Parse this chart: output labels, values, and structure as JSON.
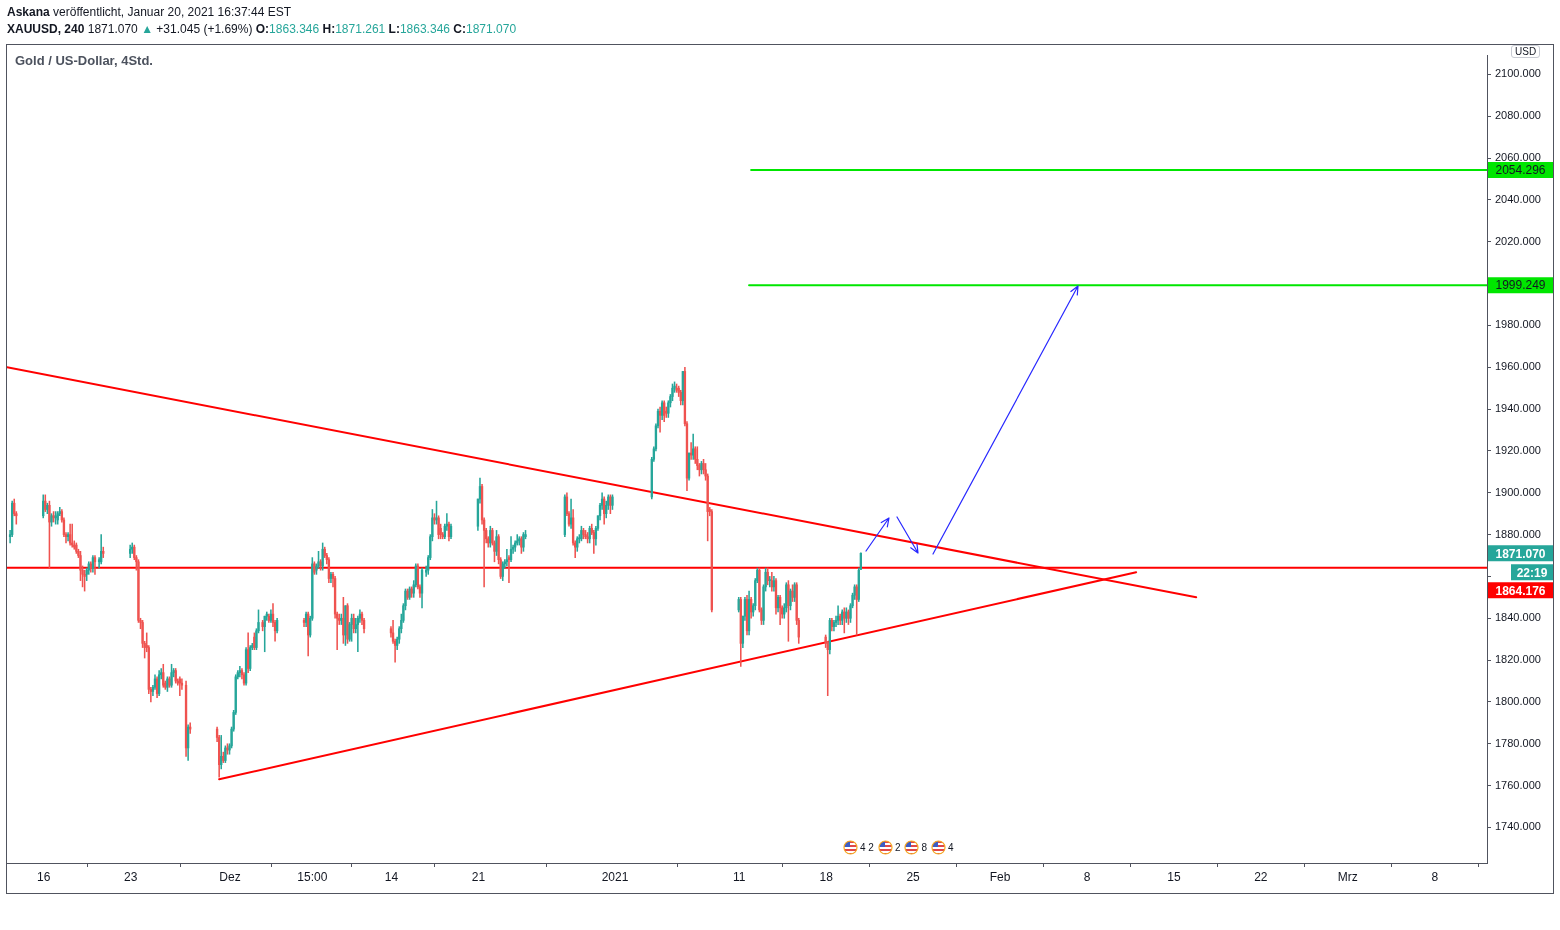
{
  "chart_data": {
    "type": "candlestick",
    "title": "Gold / US-Dollar, 4Std.",
    "subtitle": "Askana veröffentlicht, Januar 20, 2021 16:37:44 EST",
    "ylabel": "USD",
    "x": [
      "2020-11-13T07:00",
      "2020-11-13T11:00",
      "2020-11-13T15:00",
      "2020-11-13T19:00",
      "2020-11-15T23:00",
      "2020-11-16T03:00",
      "2020-11-16T07:00",
      "2020-11-16T11:00",
      "2020-11-16T15:00",
      "2020-11-16T19:00",
      "2020-11-16T23:00",
      "2020-11-17T03:00",
      "2020-11-17T07:00",
      "2020-11-17T11:00",
      "2020-11-17T15:00",
      "2020-11-17T19:00",
      "2020-11-17T23:00",
      "2020-11-18T03:00",
      "2020-11-18T07:00",
      "2020-11-18T11:00",
      "2020-11-18T15:00",
      "2020-11-18T19:00",
      "2020-11-18T23:00",
      "2020-11-19T03:00",
      "2020-11-19T07:00",
      "2020-11-19T11:00",
      "2020-11-19T15:00",
      "2020-11-19T19:00",
      "2020-11-19T23:00",
      "2020-11-20T03:00",
      "2020-11-20T11:00",
      "2020-11-20T15:00",
      "2020-11-20T19:00",
      "2020-11-22T23:00",
      "2020-11-23T03:00",
      "2020-11-23T07:00",
      "2020-11-23T11:00",
      "2020-11-23T15:00",
      "2020-11-23T19:00",
      "2020-11-23T23:00",
      "2020-11-24T03:00",
      "2020-11-24T07:00",
      "2020-11-24T11:00",
      "2020-11-24T15:00",
      "2020-11-24T19:00",
      "2020-11-24T23:00",
      "2020-11-25T03:00",
      "2020-11-25T07:00",
      "2020-11-25T11:00",
      "2020-11-25T15:00",
      "2020-11-25T19:00",
      "2020-11-25T23:00",
      "2020-11-26T03:00",
      "2020-11-26T07:00",
      "2020-11-26T11:00",
      "2020-11-26T15:00",
      "2020-11-26T19:00",
      "2020-11-26T23:00",
      "2020-11-27T03:00",
      "2020-11-27T11:00",
      "2020-11-27T15:00",
      "2020-11-27T19:00",
      "2020-11-29T23:00",
      "2020-11-30T03:00",
      "2020-11-30T07:00",
      "2020-11-30T11:00",
      "2020-11-30T15:00",
      "2020-11-30T19:00",
      "2020-11-30T23:00",
      "2020-12-01T03:00",
      "2020-12-01T07:00",
      "2020-12-01T11:00",
      "2020-12-01T15:00",
      "2020-12-01T19:00",
      "2020-12-01T23:00",
      "2020-12-02T03:00",
      "2020-12-02T07:00",
      "2020-12-02T11:00",
      "2020-12-02T15:00",
      "2020-12-02T19:00",
      "2020-12-02T23:00",
      "2020-12-03T03:00",
      "2020-12-03T07:00",
      "2020-12-03T15:00",
      "2020-12-03T19:00",
      "2020-12-03T23:00",
      "2020-12-04T03:00",
      "2020-12-04T07:00",
      "2020-12-04T11:00",
      "2020-12-04T15:00",
      "2020-12-04T19:00",
      "2020-12-06T23:00",
      "2020-12-07T03:00",
      "2020-12-07T07:00",
      "2020-12-07T11:00",
      "2020-12-07T15:00",
      "2020-12-07T19:00",
      "2020-12-07T23:00",
      "2020-12-08T03:00",
      "2020-12-08T07:00",
      "2020-12-08T11:00",
      "2020-12-08T15:00",
      "2020-12-08T19:00",
      "2020-12-08T23:00",
      "2020-12-09T03:00",
      "2020-12-09T07:00",
      "2020-12-09T11:00",
      "2020-12-09T15:00",
      "2020-12-09T19:00",
      "2020-12-09T23:00",
      "2020-12-10T03:00",
      "2020-12-10T07:00",
      "2020-12-10T11:00",
      "2020-12-10T15:00",
      "2020-12-10T19:00",
      "2020-12-10T23:00",
      "2020-12-11T03:00",
      "2020-12-11T07:00",
      "2020-12-11T11:00",
      "2020-12-11T15:00",
      "2020-12-11T19:00",
      "2020-12-13T23:00",
      "2020-12-14T03:00",
      "2020-12-14T07:00",
      "2020-12-14T11:00",
      "2020-12-14T15:00",
      "2020-12-14T19:00",
      "2020-12-14T23:00",
      "2020-12-15T03:00",
      "2020-12-15T07:00",
      "2020-12-15T11:00",
      "2020-12-15T15:00",
      "2020-12-15T19:00",
      "2020-12-15T23:00",
      "2020-12-16T03:00",
      "2020-12-16T07:00",
      "2020-12-16T11:00",
      "2020-12-16T19:00",
      "2020-12-16T23:00",
      "2020-12-17T03:00",
      "2020-12-17T07:00",
      "2020-12-17T11:00",
      "2020-12-17T15:00",
      "2020-12-17T19:00",
      "2020-12-17T23:00",
      "2020-12-18T03:00",
      "2020-12-18T07:00",
      "2020-12-18T11:00",
      "2020-12-18T15:00",
      "2020-12-18T19:00",
      "2020-12-20T23:00",
      "2020-12-21T03:00",
      "2020-12-21T07:00",
      "2020-12-21T11:00",
      "2020-12-21T15:00",
      "2020-12-21T19:00",
      "2020-12-21T23:00",
      "2020-12-22T03:00",
      "2020-12-22T07:00",
      "2020-12-22T11:00",
      "2020-12-22T15:00",
      "2020-12-22T19:00",
      "2020-12-22T23:00",
      "2020-12-23T03:00",
      "2020-12-23T07:00",
      "2020-12-23T11:00",
      "2020-12-23T15:00",
      "2020-12-23T19:00",
      "2020-12-23T23:00",
      "2020-12-24T03:00",
      "2020-12-24T07:00",
      "2020-12-24T11:00",
      "2020-12-24T15:00",
      "2020-12-24T19:00",
      "2020-12-27T23:00",
      "2020-12-28T03:00",
      "2020-12-28T07:00",
      "2020-12-28T11:00",
      "2020-12-28T15:00",
      "2020-12-28T19:00",
      "2020-12-28T23:00",
      "2020-12-29T03:00",
      "2020-12-29T07:00",
      "2020-12-29T11:00",
      "2020-12-29T15:00",
      "2020-12-29T19:00",
      "2020-12-29T23:00",
      "2020-12-30T03:00",
      "2020-12-30T07:00",
      "2020-12-30T11:00",
      "2020-12-30T15:00",
      "2020-12-30T19:00",
      "2020-12-30T23:00",
      "2020-12-31T03:00",
      "2020-12-31T07:00",
      "2020-12-31T11:00",
      "2020-12-31T15:00",
      "2020-12-31T19:00",
      "2021-01-03T23:00",
      "2021-01-04T03:00",
      "2021-01-04T07:00",
      "2021-01-04T11:00",
      "2021-01-04T15:00",
      "2021-01-04T19:00",
      "2021-01-04T23:00",
      "2021-01-05T03:00",
      "2021-01-05T07:00",
      "2021-01-05T11:00",
      "2021-01-05T15:00",
      "2021-01-05T19:00",
      "2021-01-05T23:00",
      "2021-01-06T03:00",
      "2021-01-06T07:00",
      "2021-01-06T11:00",
      "2021-01-06T15:00",
      "2021-01-06T19:00",
      "2021-01-06T23:00",
      "2021-01-07T03:00",
      "2021-01-07T07:00",
      "2021-01-07T11:00",
      "2021-01-07T15:00",
      "2021-01-07T19:00",
      "2021-01-07T23:00",
      "2021-01-08T03:00",
      "2021-01-08T07:00",
      "2021-01-08T11:00",
      "2021-01-08T15:00",
      "2021-01-08T19:00",
      "2021-01-10T23:00",
      "2021-01-11T03:00",
      "2021-01-11T07:00",
      "2021-01-11T11:00",
      "2021-01-11T15:00",
      "2021-01-11T19:00",
      "2021-01-11T23:00",
      "2021-01-12T03:00",
      "2021-01-12T07:00",
      "2021-01-12T11:00",
      "2021-01-12T15:00",
      "2021-01-12T19:00",
      "2021-01-12T23:00",
      "2021-01-13T03:00",
      "2021-01-13T07:00",
      "2021-01-13T11:00",
      "2021-01-13T15:00",
      "2021-01-13T19:00",
      "2021-01-13T23:00",
      "2021-01-14T03:00",
      "2021-01-14T07:00",
      "2021-01-14T11:00",
      "2021-01-14T15:00",
      "2021-01-14T19:00",
      "2021-01-14T23:00",
      "2021-01-15T03:00",
      "2021-01-15T07:00",
      "2021-01-15T11:00",
      "2021-01-15T15:00",
      "2021-01-15T19:00",
      "2021-01-17T23:00",
      "2021-01-18T03:00",
      "2021-01-18T07:00",
      "2021-01-18T11:00",
      "2021-01-18T15:00",
      "2021-01-18T19:00",
      "2021-01-18T23:00",
      "2021-01-19T03:00",
      "2021-01-19T07:00",
      "2021-01-19T11:00",
      "2021-01-19T15:00",
      "2021-01-19T19:00",
      "2021-01-19T23:00",
      "2021-01-20T03:00",
      "2021-01-20T07:00",
      "2021-01-20T11:00",
      "2021-01-20T15:00",
      "2021-01-20T19:00"
    ],
    "ohlc": [
      [
        1879,
        1882,
        1876,
        1880
      ],
      [
        1880,
        1896,
        1879,
        1895
      ],
      [
        1895,
        1897,
        1889,
        1890
      ],
      [
        1890,
        1891,
        1885,
        1889
      ],
      [
        1889,
        1899,
        1888,
        1896
      ],
      [
        1896,
        1899,
        1891,
        1892
      ],
      [
        1892,
        1895,
        1890,
        1894
      ],
      [
        1894,
        1896,
        1864,
        1886
      ],
      [
        1886,
        1890,
        1884,
        1889
      ],
      [
        1889,
        1891,
        1886,
        1888
      ],
      [
        1888,
        1891,
        1885,
        1889
      ],
      [
        1887,
        1891,
        1885,
        1890
      ],
      [
        1890,
        1893,
        1889,
        1891
      ],
      [
        1891,
        1892,
        1886,
        1887
      ],
      [
        1887,
        1888,
        1879,
        1880
      ],
      [
        1880,
        1881,
        1876,
        1879
      ],
      [
        1879,
        1881,
        1877,
        1880
      ],
      [
        1880,
        1885,
        1875,
        1876
      ],
      [
        1876,
        1885,
        1874,
        1875
      ],
      [
        1875,
        1877,
        1873,
        1874
      ],
      [
        1875,
        1876,
        1871,
        1872
      ],
      [
        1872,
        1873,
        1869,
        1870
      ],
      [
        1870,
        1872,
        1858,
        1863
      ],
      [
        1863,
        1865,
        1855,
        1861
      ],
      [
        1861,
        1863,
        1853,
        1860
      ],
      [
        1861,
        1864,
        1858,
        1863
      ],
      [
        1863,
        1867,
        1861,
        1866
      ],
      [
        1866,
        1867,
        1862,
        1864
      ],
      [
        1864,
        1870,
        1862,
        1869
      ],
      [
        1869,
        1870,
        1861,
        1867
      ],
      [
        1867,
        1869,
        1864,
        1868
      ],
      [
        1867,
        1880,
        1866,
        1872
      ],
      [
        1872,
        1874,
        1869,
        1871
      ],
      [
        1871,
        1875,
        1869,
        1873
      ],
      [
        1873,
        1876,
        1871,
        1874
      ],
      [
        1874,
        1875,
        1868,
        1869
      ],
      [
        1869,
        1870,
        1863,
        1867
      ],
      [
        1867,
        1868,
        1838,
        1839
      ],
      [
        1839,
        1840,
        1835,
        1838
      ],
      [
        1838,
        1839,
        1826,
        1828
      ],
      [
        1828,
        1829,
        1821,
        1826
      ],
      [
        1827,
        1833,
        1824,
        1826
      ],
      [
        1826,
        1827,
        1804,
        1806
      ],
      [
        1806,
        1807,
        1800,
        1805
      ],
      [
        1805,
        1808,
        1803,
        1807
      ],
      [
        1807,
        1813,
        1806,
        1811
      ],
      [
        1811,
        1812,
        1802,
        1804
      ],
      [
        1804,
        1815,
        1803,
        1813
      ],
      [
        1813,
        1816,
        1811,
        1814
      ],
      [
        1814,
        1818,
        1807,
        1808
      ],
      [
        1809,
        1810,
        1806,
        1807
      ],
      [
        1807,
        1812,
        1805,
        1811
      ],
      [
        1811,
        1812,
        1807,
        1808
      ],
      [
        1808,
        1818,
        1807,
        1814
      ],
      [
        1814,
        1816,
        1812,
        1815
      ],
      [
        1815,
        1816,
        1809,
        1810
      ],
      [
        1810,
        1811,
        1808,
        1809
      ],
      [
        1811,
        1812,
        1803,
        1809
      ],
      [
        1809,
        1811,
        1806,
        1808
      ],
      [
        1808,
        1810,
        1774,
        1778
      ],
      [
        1778,
        1789,
        1772,
        1788
      ],
      [
        1788,
        1790,
        1785,
        1787
      ],
      [
        1787,
        1788,
        1781,
        1783
      ],
      [
        1783,
        1784,
        1764,
        1770
      ],
      [
        1770,
        1784,
        1768,
        1774
      ],
      [
        1774,
        1776,
        1771,
        1772
      ],
      [
        1772,
        1779,
        1771,
        1778
      ],
      [
        1778,
        1780,
        1775,
        1777
      ],
      [
        1777,
        1780,
        1775,
        1779
      ],
      [
        1779,
        1788,
        1778,
        1787
      ],
      [
        1787,
        1796,
        1786,
        1795
      ],
      [
        1795,
        1813,
        1794,
        1812
      ],
      [
        1812,
        1815,
        1811,
        1814
      ],
      [
        1814,
        1817,
        1812,
        1815
      ],
      [
        1815,
        1816,
        1811,
        1813
      ],
      [
        1813,
        1814,
        1808,
        1809
      ],
      [
        1809,
        1826,
        1808,
        1825
      ],
      [
        1825,
        1833,
        1814,
        1816
      ],
      [
        1816,
        1827,
        1815,
        1826
      ],
      [
        1826,
        1828,
        1825,
        1827
      ],
      [
        1831,
        1833,
        1825,
        1826
      ],
      [
        1826,
        1835,
        1825,
        1834
      ],
      [
        1834,
        1844,
        1833,
        1838
      ],
      [
        1838,
        1839,
        1834,
        1836
      ],
      [
        1836,
        1841,
        1824,
        1841
      ],
      [
        1841,
        1843,
        1839,
        1842
      ],
      [
        1841,
        1842,
        1838,
        1839
      ],
      [
        1839,
        1844,
        1838,
        1842
      ],
      [
        1842,
        1847,
        1836,
        1838
      ],
      [
        1838,
        1839,
        1829,
        1834
      ],
      [
        1834,
        1840,
        1833,
        1839
      ],
      [
        1839,
        1840,
        1836,
        1838
      ],
      [
        1838,
        1843,
        1836,
        1842
      ],
      [
        1842,
        1843,
        1822,
        1832
      ],
      [
        1832,
        1841,
        1831,
        1840
      ],
      [
        1840,
        1869,
        1839,
        1866
      ],
      [
        1866,
        1867,
        1861,
        1862
      ],
      [
        1863,
        1866,
        1861,
        1865
      ],
      [
        1865,
        1872,
        1864,
        1867
      ],
      [
        1867,
        1868,
        1863,
        1865
      ],
      [
        1865,
        1876,
        1863,
        1873
      ],
      [
        1873,
        1874,
        1869,
        1870
      ],
      [
        1870,
        1871,
        1866,
        1868
      ],
      [
        1868,
        1869,
        1857,
        1859
      ],
      [
        1859,
        1862,
        1857,
        1861
      ],
      [
        1861,
        1862,
        1855,
        1859
      ],
      [
        1859,
        1860,
        1840,
        1842
      ],
      [
        1842,
        1843,
        1825,
        1840
      ],
      [
        1840,
        1842,
        1837,
        1839
      ],
      [
        1839,
        1842,
        1837,
        1840
      ],
      [
        1840,
        1850,
        1828,
        1832
      ],
      [
        1832,
        1846,
        1827,
        1846
      ],
      [
        1846,
        1847,
        1828,
        1830
      ],
      [
        1830,
        1838,
        1829,
        1837
      ],
      [
        1837,
        1842,
        1829,
        1840
      ],
      [
        1840,
        1842,
        1833,
        1835
      ],
      [
        1835,
        1840,
        1833,
        1837
      ],
      [
        1837,
        1841,
        1824,
        1840
      ],
      [
        1840,
        1844,
        1838,
        1842
      ],
      [
        1842,
        1843,
        1837,
        1839
      ],
      [
        1839,
        1840,
        1833,
        1835
      ],
      [
        1835,
        1836,
        1831,
        1833
      ],
      [
        1833,
        1839,
        1828,
        1829
      ],
      [
        1829,
        1830,
        1819,
        1827
      ],
      [
        1827,
        1831,
        1825,
        1830
      ],
      [
        1830,
        1836,
        1828,
        1835
      ],
      [
        1835,
        1842,
        1833,
        1839
      ],
      [
        1839,
        1847,
        1838,
        1846
      ],
      [
        1846,
        1854,
        1844,
        1853
      ],
      [
        1853,
        1854,
        1849,
        1850
      ],
      [
        1850,
        1855,
        1849,
        1854
      ],
      [
        1854,
        1855,
        1850,
        1852
      ],
      [
        1852,
        1858,
        1850,
        1856
      ],
      [
        1856,
        1866,
        1855,
        1865
      ],
      [
        1865,
        1866,
        1854,
        1855
      ],
      [
        1855,
        1856,
        1850,
        1852
      ],
      [
        1852,
        1864,
        1845,
        1863
      ],
      [
        1862,
        1865,
        1860,
        1863
      ],
      [
        1863,
        1870,
        1861,
        1869
      ],
      [
        1869,
        1880,
        1868,
        1879
      ],
      [
        1879,
        1892,
        1877,
        1888
      ],
      [
        1888,
        1890,
        1885,
        1887
      ],
      [
        1887,
        1896,
        1885,
        1888
      ],
      [
        1888,
        1889,
        1878,
        1880
      ],
      [
        1883,
        1885,
        1878,
        1880
      ],
      [
        1880,
        1881,
        1878,
        1879
      ],
      [
        1879,
        1885,
        1878,
        1884
      ],
      [
        1884,
        1890,
        1882,
        1885
      ],
      [
        1885,
        1886,
        1877,
        1879
      ],
      [
        1879,
        1885,
        1878,
        1884
      ],
      [
        1884,
        1897,
        1882,
        1897
      ],
      [
        1897,
        1907,
        1895,
        1903
      ],
      [
        1903,
        1904,
        1885,
        1887
      ],
      [
        1887,
        1888,
        1855,
        1882
      ],
      [
        1882,
        1883,
        1876,
        1878
      ],
      [
        1878,
        1879,
        1874,
        1876
      ],
      [
        1876,
        1884,
        1874,
        1882
      ],
      [
        1882,
        1883,
        1875,
        1876
      ],
      [
        1876,
        1877,
        1867,
        1872
      ],
      [
        1872,
        1882,
        1870,
        1879
      ],
      [
        1879,
        1880,
        1866,
        1868
      ],
      [
        1868,
        1869,
        1859,
        1860
      ],
      [
        1860,
        1867,
        1858,
        1866
      ],
      [
        1866,
        1868,
        1864,
        1867
      ],
      [
        1867,
        1873,
        1865,
        1868
      ],
      [
        1869,
        1870,
        1857,
        1868
      ],
      [
        1868,
        1879,
        1867,
        1873
      ],
      [
        1873,
        1875,
        1871,
        1874
      ],
      [
        1874,
        1877,
        1872,
        1876
      ],
      [
        1876,
        1880,
        1875,
        1877
      ],
      [
        1877,
        1879,
        1875,
        1878
      ],
      [
        1878,
        1879,
        1871,
        1874
      ],
      [
        1874,
        1881,
        1872,
        1880
      ],
      [
        1879,
        1882,
        1878,
        1880
      ],
      [
        1880,
        1899,
        1879,
        1898
      ],
      [
        1898,
        1900,
        1889,
        1890
      ],
      [
        1890,
        1891,
        1884,
        1885
      ],
      [
        1885,
        1897,
        1883,
        1888
      ],
      [
        1888,
        1892,
        1875,
        1876
      ],
      [
        1876,
        1877,
        1869,
        1874
      ],
      [
        1874,
        1879,
        1872,
        1878
      ],
      [
        1878,
        1880,
        1876,
        1878
      ],
      [
        1878,
        1884,
        1877,
        1882
      ],
      [
        1882,
        1883,
        1878,
        1880
      ],
      [
        1880,
        1882,
        1878,
        1879
      ],
      [
        1879,
        1881,
        1876,
        1878
      ],
      [
        1878,
        1884,
        1876,
        1883
      ],
      [
        1883,
        1885,
        1880,
        1881
      ],
      [
        1881,
        1882,
        1871,
        1878
      ],
      [
        1878,
        1884,
        1875,
        1883
      ],
      [
        1883,
        1889,
        1882,
        1889
      ],
      [
        1889,
        1895,
        1887,
        1894
      ],
      [
        1894,
        1900,
        1892,
        1897
      ],
      [
        1897,
        1898,
        1885,
        1890
      ],
      [
        1890,
        1896,
        1888,
        1894
      ],
      [
        1894,
        1899,
        1892,
        1898
      ],
      [
        1898,
        1899,
        1890,
        1894
      ],
      [
        1894,
        1899,
        1892,
        1898
      ],
      [
        1898,
        1917,
        1897,
        1916
      ],
      [
        1916,
        1922,
        1915,
        1921
      ],
      [
        1921,
        1933,
        1920,
        1932
      ],
      [
        1932,
        1940,
        1931,
        1939
      ],
      [
        1939,
        1941,
        1929,
        1937
      ],
      [
        1937,
        1944,
        1935,
        1943
      ],
      [
        1943,
        1944,
        1934,
        1937
      ],
      [
        1939,
        1941,
        1936,
        1938
      ],
      [
        1938,
        1944,
        1936,
        1943
      ],
      [
        1943,
        1947,
        1941,
        1946
      ],
      [
        1946,
        1952,
        1944,
        1950
      ],
      [
        1950,
        1953,
        1948,
        1951
      ],
      [
        1950,
        1952,
        1948,
        1949
      ],
      [
        1950,
        1951,
        1946,
        1948
      ],
      [
        1948,
        1949,
        1942,
        1944
      ],
      [
        1944,
        1958,
        1942,
        1958
      ],
      [
        1958,
        1960,
        1932,
        1933
      ],
      [
        1933,
        1934,
        1901,
        1907
      ],
      [
        1907,
        1919,
        1906,
        1919
      ],
      [
        1919,
        1924,
        1916,
        1918
      ],
      [
        1918,
        1928,
        1916,
        1921
      ],
      [
        1921,
        1922,
        1914,
        1916
      ],
      [
        1916,
        1922,
        1911,
        1913
      ],
      [
        1913,
        1914,
        1908,
        1911
      ],
      [
        1911,
        1915,
        1909,
        1914
      ],
      [
        1914,
        1916,
        1909,
        1911
      ],
      [
        1911,
        1914,
        1906,
        1908
      ],
      [
        1908,
        1909,
        1877,
        1891
      ],
      [
        1892,
        1893,
        1889,
        1891
      ],
      [
        1891,
        1892,
        1843,
        1844
      ],
      [
        1844,
        1850,
        1843,
        1849
      ],
      [
        1849,
        1850,
        1817,
        1828
      ],
      [
        1828,
        1841,
        1826,
        1841
      ],
      [
        1841,
        1850,
        1839,
        1849
      ],
      [
        1849,
        1851,
        1832,
        1834
      ],
      [
        1834,
        1853,
        1832,
        1849
      ],
      [
        1849,
        1850,
        1840,
        1843
      ],
      [
        1843,
        1847,
        1841,
        1846
      ],
      [
        1846,
        1859,
        1844,
        1858
      ],
      [
        1858,
        1864,
        1857,
        1863
      ],
      [
        1863,
        1864,
        1843,
        1844
      ],
      [
        1844,
        1845,
        1837,
        1839
      ],
      [
        1839,
        1856,
        1837,
        1855
      ],
      [
        1855,
        1864,
        1853,
        1862
      ],
      [
        1862,
        1864,
        1856,
        1858
      ],
      [
        1858,
        1860,
        1855,
        1858
      ],
      [
        1858,
        1862,
        1853,
        1855
      ],
      [
        1855,
        1860,
        1853,
        1858
      ],
      [
        1858,
        1859,
        1842,
        1845
      ],
      [
        1845,
        1851,
        1843,
        1850
      ],
      [
        1850,
        1851,
        1837,
        1845
      ],
      [
        1845,
        1846,
        1840,
        1842
      ],
      [
        1842,
        1847,
        1840,
        1845
      ],
      [
        1845,
        1857,
        1843,
        1856
      ],
      [
        1856,
        1858,
        1829,
        1846
      ],
      [
        1846,
        1854,
        1844,
        1853
      ],
      [
        1853,
        1856,
        1848,
        1850
      ],
      [
        1850,
        1857,
        1848,
        1856
      ],
      [
        1856,
        1857,
        1837,
        1839
      ],
      [
        1839,
        1840,
        1828,
        1831
      ],
      [
        1831,
        1832,
        1826,
        1828
      ],
      [
        1828,
        1829,
        1803,
        1825
      ],
      [
        1825,
        1840,
        1823,
        1839
      ],
      [
        1839,
        1840,
        1834,
        1836
      ],
      [
        1836,
        1839,
        1834,
        1838
      ],
      [
        1838,
        1841,
        1836,
        1839
      ],
      [
        1839,
        1846,
        1837,
        1841
      ],
      [
        1841,
        1842,
        1837,
        1839
      ],
      [
        1839,
        1844,
        1837,
        1843
      ],
      [
        1843,
        1845,
        1833,
        1840
      ],
      [
        1840,
        1845,
        1838,
        1843
      ],
      [
        1843,
        1844,
        1837,
        1840
      ],
      [
        1840,
        1847,
        1838,
        1846
      ],
      [
        1846,
        1852,
        1845,
        1851
      ],
      [
        1851,
        1856,
        1849,
        1855
      ],
      [
        1855,
        1856,
        1832,
        1849
      ],
      [
        1849,
        1864,
        1848,
        1863
      ],
      [
        1863.346,
        1871.261,
        1863.346,
        1871.07
      ]
    ],
    "colors": [
      "#26a69a",
      "#26a69a",
      "#ef5350",
      "#ef5350",
      "#26a69a",
      "#ef5350",
      "#26a69a",
      "#ef5350",
      "#26a69a",
      "#ef5350",
      "#26a69a",
      "#26a69a",
      "#26a69a",
      "#ef5350",
      "#ef5350",
      "#ef5350",
      "#26a69a",
      "#ef5350",
      "#ef5350",
      "#ef5350",
      "#ef5350",
      "#ef5350",
      "#ef5350",
      "#ef5350",
      "#ef5350",
      "#26a69a",
      "#26a69a",
      "#ef5350",
      "#26a69a",
      "#ef5350",
      "#26a69a",
      "#26a69a",
      "#ef5350",
      "#26a69a",
      "#26a69a",
      "#ef5350",
      "#ef5350",
      "#ef5350",
      "#ef5350",
      "#ef5350",
      "#ef5350",
      "#ef5350",
      "#ef5350",
      "#ef5350",
      "#26a69a",
      "#26a69a",
      "#ef5350",
      "#26a69a",
      "#26a69a",
      "#ef5350",
      "#ef5350",
      "#26a69a",
      "#ef5350",
      "#26a69a",
      "#26a69a",
      "#ef5350",
      "#ef5350",
      "#ef5350",
      "#ef5350",
      "#ef5350",
      "#26a69a",
      "#ef5350",
      "#ef5350",
      "#ef5350",
      "#26a69a",
      "#ef5350",
      "#26a69a",
      "#ef5350",
      "#26a69a",
      "#26a69a",
      "#26a69a",
      "#26a69a",
      "#26a69a",
      "#26a69a",
      "#ef5350",
      "#ef5350",
      "#26a69a",
      "#ef5350",
      "#26a69a",
      "#26a69a",
      "#ef5350",
      "#26a69a",
      "#26a69a",
      "#ef5350",
      "#26a69a",
      "#26a69a",
      "#ef5350",
      "#26a69a",
      "#ef5350",
      "#ef5350",
      "#26a69a",
      "#ef5350",
      "#26a69a",
      "#ef5350",
      "#26a69a",
      "#26a69a",
      "#ef5350",
      "#26a69a",
      "#26a69a",
      "#ef5350",
      "#26a69a",
      "#ef5350",
      "#ef5350",
      "#ef5350",
      "#26a69a",
      "#ef5350",
      "#ef5350",
      "#ef5350",
      "#ef5350",
      "#26a69a",
      "#ef5350",
      "#26a69a",
      "#ef5350",
      "#26a69a",
      "#26a69a",
      "#ef5350",
      "#26a69a",
      "#26a69a",
      "#26a69a",
      "#ef5350",
      "#ef5350",
      "#ef5350",
      "#ef5350",
      "#ef5350",
      "#26a69a",
      "#26a69a",
      "#26a69a",
      "#26a69a",
      "#26a69a",
      "#ef5350",
      "#26a69a",
      "#ef5350",
      "#26a69a",
      "#26a69a",
      "#ef5350",
      "#ef5350",
      "#26a69a",
      "#26a69a",
      "#26a69a",
      "#26a69a",
      "#26a69a",
      "#ef5350",
      "#26a69a",
      "#ef5350",
      "#ef5350",
      "#ef5350",
      "#26a69a",
      "#26a69a",
      "#ef5350",
      "#26a69a",
      "#26a69a",
      "#26a69a",
      "#ef5350",
      "#ef5350",
      "#ef5350",
      "#ef5350",
      "#26a69a",
      "#ef5350",
      "#ef5350",
      "#26a69a",
      "#ef5350",
      "#ef5350",
      "#26a69a",
      "#26a69a",
      "#26a69a",
      "#ef5350",
      "#26a69a",
      "#26a69a",
      "#26a69a",
      "#26a69a",
      "#26a69a",
      "#ef5350",
      "#26a69a",
      "#26a69a",
      "#26a69a",
      "#ef5350",
      "#ef5350",
      "#26a69a",
      "#ef5350",
      "#ef5350",
      "#26a69a",
      "#26a69a",
      "#26a69a",
      "#ef5350",
      "#ef5350",
      "#ef5350",
      "#26a69a",
      "#ef5350",
      "#ef5350",
      "#26a69a",
      "#26a69a",
      "#26a69a",
      "#26a69a",
      "#ef5350",
      "#26a69a",
      "#26a69a",
      "#ef5350",
      "#26a69a",
      "#26a69a",
      "#26a69a",
      "#26a69a",
      "#26a69a",
      "#ef5350",
      "#26a69a",
      "#ef5350",
      "#ef5350",
      "#26a69a",
      "#26a69a",
      "#26a69a",
      "#26a69a",
      "#ef5350",
      "#ef5350",
      "#ef5350",
      "#26a69a",
      "#ef5350",
      "#ef5350",
      "#26a69a",
      "#ef5350",
      "#26a69a",
      "#ef5350",
      "#ef5350",
      "#ef5350",
      "#26a69a",
      "#ef5350",
      "#ef5350",
      "#ef5350",
      "#ef5350",
      "#ef5350",
      "#26a69a",
      "#ef5350",
      "#26a69a",
      "#26a69a",
      "#ef5350",
      "#26a69a",
      "#ef5350",
      "#26a69a",
      "#26a69a",
      "#26a69a",
      "#ef5350",
      "#ef5350",
      "#26a69a",
      "#26a69a",
      "#ef5350",
      "#26a69a",
      "#ef5350",
      "#26a69a",
      "#ef5350",
      "#26a69a",
      "#ef5350",
      "#ef5350",
      "#26a69a",
      "#26a69a",
      "#ef5350",
      "#26a69a",
      "#ef5350",
      "#26a69a",
      "#ef5350",
      "#ef5350",
      "#ef5350",
      "#ef5350",
      "#26a69a",
      "#ef5350",
      "#26a69a",
      "#26a69a",
      "#26a69a",
      "#ef5350",
      "#26a69a",
      "#ef5350",
      "#26a69a",
      "#ef5350",
      "#26a69a",
      "#26a69a",
      "#26a69a",
      "#ef5350",
      "#26a69a",
      "#26a69a"
    ],
    "series": [
      {
        "type": "line",
        "color": "#ff0000",
        "x": [
          "2020-11-13T01:00",
          "2021-02-16T19:00"
        ],
        "values": [
          1960,
          1850
        ]
      },
      {
        "type": "line",
        "color": "#ff0000",
        "x": [
          "2020-11-30T03:00",
          "2021-02-11T23:00"
        ],
        "values": [
          1763,
          1862
        ]
      },
      {
        "type": "line",
        "color": "#00e600",
        "x": [
          "2021-01-11T23:00",
          "2021-03-12T05:00"
        ],
        "values": [
          2054.296,
          2054.296
        ],
        "value_labels": [
          null,
          "2054.296"
        ]
      },
      {
        "type": "line",
        "color": "#00e600",
        "x": [
          "2021-01-11T19:00",
          "2021-03-12T05:00"
        ],
        "values": [
          1999.249,
          1999.249
        ],
        "value_labels": [
          null,
          "1999.249"
        ]
      }
    ],
    "ref_lines": [
      {
        "axis": "y",
        "value": 1864.176,
        "label": "1864.176",
        "color": "#ff0000"
      }
    ],
    "xlim": [
      "2020-11-13T01:00",
      "2021-03-12T05:00"
    ],
    "xticks": [
      {
        "value": "2020-11-16",
        "label": "16"
      },
      {
        "value": "2020-11-23",
        "label": "23"
      },
      {
        "value": "2020-12-01",
        "label": "Dez"
      },
      {
        "value": "2020-12-07T15:00",
        "label": "15:00"
      },
      {
        "value": "2020-12-14",
        "label": "14"
      },
      {
        "value": "2020-12-21",
        "label": "21"
      },
      {
        "value": "2021-01-01",
        "label": "2021"
      },
      {
        "value": "2021-01-11",
        "label": "11"
      },
      {
        "value": "2021-01-18",
        "label": "18"
      },
      {
        "value": "2021-01-25",
        "label": "25"
      },
      {
        "value": "2021-02-01",
        "label": "Feb"
      },
      {
        "value": "2021-02-08",
        "label": "8"
      },
      {
        "value": "2021-02-15",
        "label": "15"
      },
      {
        "value": "2021-02-22",
        "label": "22"
      },
      {
        "value": "2021-03-01",
        "label": "Mrz"
      },
      {
        "value": "2021-03-08",
        "label": "8"
      }
    ],
    "ylim": [
      1723,
      2109
    ],
    "yticks": [
      {
        "value": 1740,
        "label": "1740.000"
      },
      {
        "value": 1760,
        "label": "1760.000"
      },
      {
        "value": 1780,
        "label": "1780.000"
      },
      {
        "value": 1800,
        "label": "1800.000"
      },
      {
        "value": 1820,
        "label": "1820.000"
      },
      {
        "value": 1840,
        "label": "1840.000"
      },
      {
        "value": 1860,
        "label": null
      },
      {
        "value": 1880,
        "label": "1880.000"
      },
      {
        "value": 1900,
        "label": "1900.000"
      },
      {
        "value": 1920,
        "label": "1920.000"
      },
      {
        "value": 1940,
        "label": "1940.000"
      },
      {
        "value": 1960,
        "label": "1960.000"
      },
      {
        "value": 1980,
        "label": "1980.000"
      },
      {
        "value": 2000,
        "label": null
      },
      {
        "value": 2020,
        "label": "2020.000"
      },
      {
        "value": 2040,
        "label": "2040.000"
      },
      {
        "value": 2060,
        "label": "2060.000"
      },
      {
        "value": 2080,
        "label": "2080.000"
      },
      {
        "value": 2100,
        "label": "2100.000"
      }
    ],
    "annotations": [
      "XAUUSD, 240",
      "1871.070",
      "▲ +31.045 (+1.69%)",
      "O:1863.346 H:1871.261 L:1863.346 C:1871.070",
      "1871.070",
      "22:19",
      "4 2",
      "2",
      "8",
      "4"
    ]
  }
}
